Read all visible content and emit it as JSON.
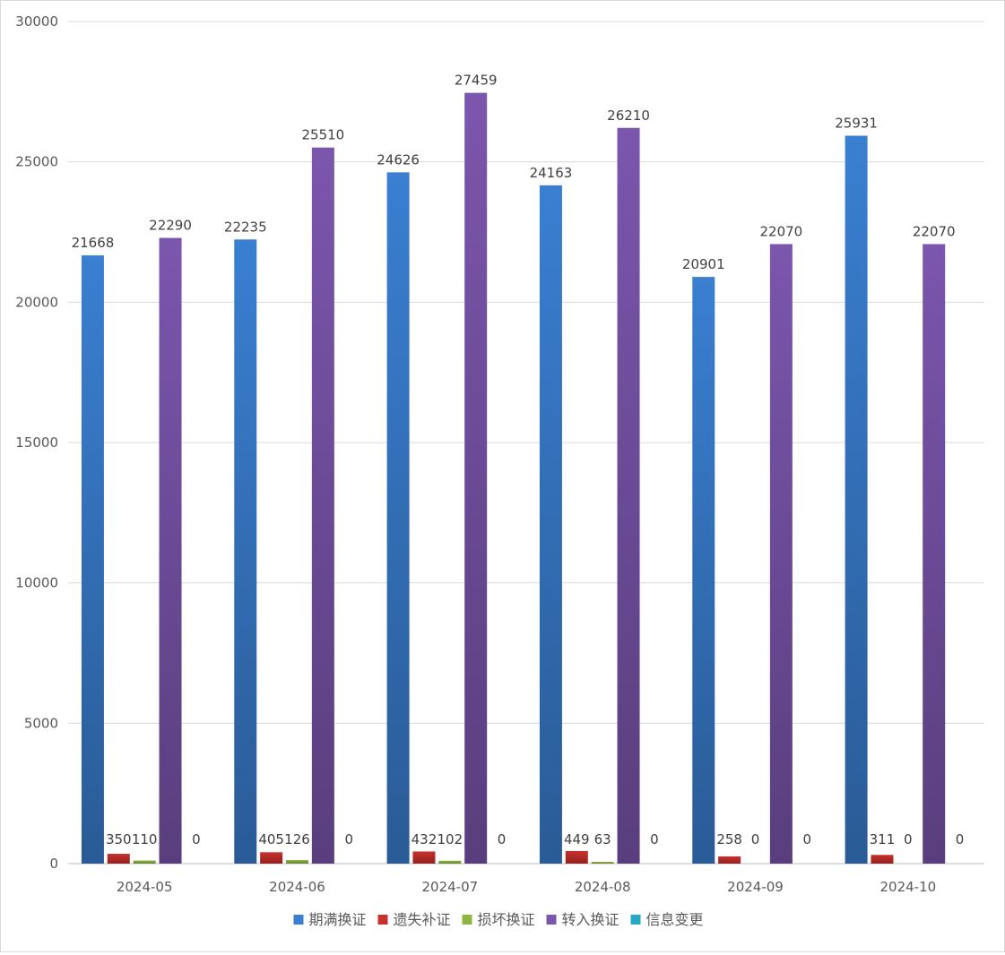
{
  "chart_data": {
    "type": "bar",
    "title": "",
    "xlabel": "",
    "ylabel": "",
    "ylim": [
      0,
      30000
    ],
    "y_ticks": [
      0,
      5000,
      10000,
      15000,
      20000,
      25000,
      30000
    ],
    "grid": true,
    "legend_position": "bottom",
    "categories": [
      "2024-05",
      "2024-06",
      "2024-07",
      "2024-08",
      "2024-09",
      "2024-10"
    ],
    "series": [
      {
        "name": "期满换证",
        "color": "#3a7fd1",
        "values": [
          21668,
          22235,
          24626,
          24163,
          20901,
          25931
        ]
      },
      {
        "name": "遗失补证",
        "color": "#c9302c",
        "values": [
          350,
          405,
          432,
          449,
          258,
          311
        ]
      },
      {
        "name": "损坏换证",
        "color": "#8db542",
        "values": [
          110,
          126,
          102,
          63,
          0,
          0
        ]
      },
      {
        "name": "转入换证",
        "color": "#7b56ad",
        "values": [
          22290,
          25510,
          27459,
          26210,
          22070,
          22070
        ]
      },
      {
        "name": "信息变更",
        "color": "#25a9c6",
        "values": [
          0,
          0,
          0,
          0,
          0,
          0
        ]
      }
    ]
  }
}
